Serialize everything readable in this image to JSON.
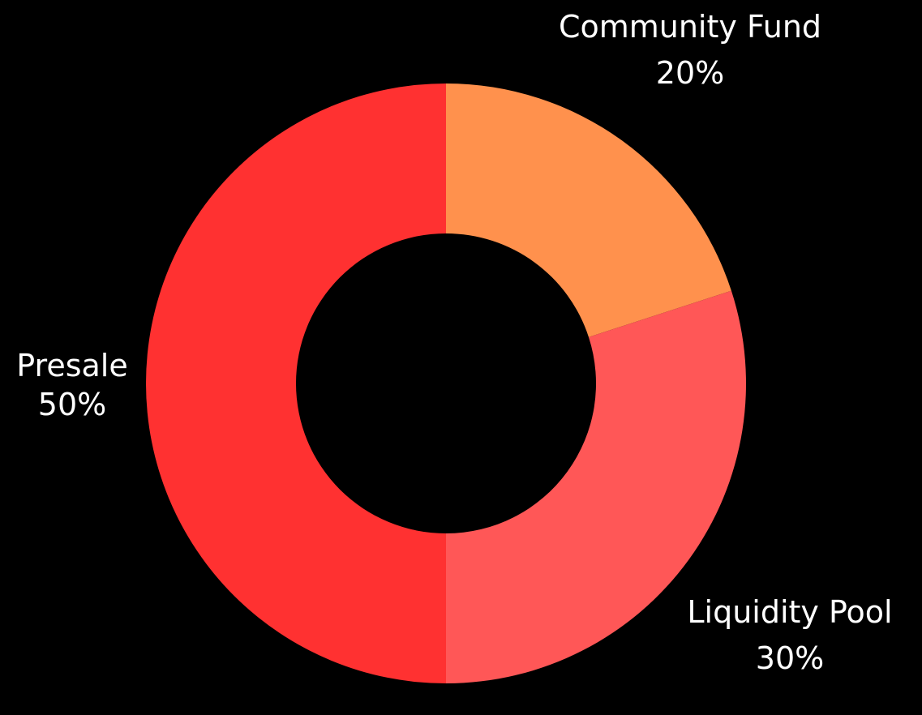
{
  "chart_data": {
    "type": "pie",
    "donut": true,
    "slices": [
      {
        "label": "Community Fund",
        "value": 20,
        "display": "20%",
        "color": "#ff914d"
      },
      {
        "label": "Liquidity Pool",
        "value": 30,
        "display": "30%",
        "color": "#ff5757"
      },
      {
        "label": "Presale",
        "value": 50,
        "display": "50%",
        "color": "#ff3131"
      }
    ],
    "background": "#000000",
    "label_color": "#ffffff"
  }
}
